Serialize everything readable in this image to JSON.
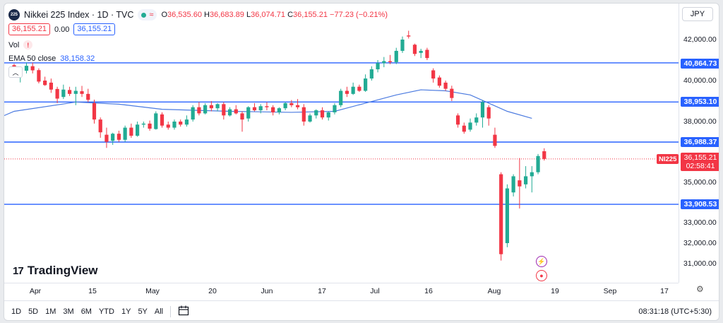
{
  "legend": {
    "logo_text": "225",
    "symbol_title": "Nikkei 225 Index · 1D · TVC",
    "ohlc": [
      {
        "label": "O",
        "value": "36,535.60"
      },
      {
        "label": "H",
        "value": "36,683.89"
      },
      {
        "label": "L",
        "value": "36,074.71"
      },
      {
        "label": "C",
        "value": "36,155.21"
      }
    ],
    "change": "−77.23 (−0.21%)",
    "bid": "36,155.21",
    "spread": "0.00",
    "ask": "36,155.21",
    "vol_label": "Vol",
    "vol_warning": "!",
    "ema_label": "EMA 50 close",
    "ema_value": "38,158.32",
    "collapse_glyph": "︿"
  },
  "currency": {
    "label": "JPY",
    "caret": "▾"
  },
  "price_labels": [
    "42,000.00",
    "40,000.00",
    "38,000.00",
    "35,000.00",
    "33,000.00",
    "32,000.00",
    "31,000.00"
  ],
  "levels": [
    "40,864.73",
    "38,953.10",
    "36,988.37",
    "33,908.53"
  ],
  "last_price": {
    "price": "36,155.21",
    "countdown": "02:58:41",
    "symbol_tag": "NI225"
  },
  "time_labels": [
    "Apr",
    "15",
    "May",
    "20",
    "Jun",
    "17",
    "Jul",
    "16",
    "Aug",
    "19",
    "Sep",
    "17"
  ],
  "brand": {
    "mark": "17",
    "name": "TradingView"
  },
  "events": {
    "flash_glyph": "⚡",
    "record_glyph": "●"
  },
  "ranges": [
    "1D",
    "5D",
    "1M",
    "3M",
    "6M",
    "YTD",
    "1Y",
    "5Y",
    "All"
  ],
  "calendar_icon": "📅",
  "clock": "08:31:18 (UTC+5:30)",
  "settings_icon": "⚙",
  "colors": {
    "up": "#22ab94",
    "down": "#f23645",
    "ema": "#2962ff",
    "level": "#2962ff"
  },
  "chart_data": {
    "type": "candlestick",
    "title": "Nikkei 225 Index · 1D · TVC",
    "xlabel": "",
    "ylabel": "",
    "ylim": [
      31000,
      42000
    ],
    "grid": false,
    "x_tick_labels": [
      "Apr",
      "15",
      "May",
      "20",
      "Jun",
      "17",
      "Jul",
      "16",
      "Aug",
      "19",
      "Sep",
      "17"
    ],
    "candles": [
      {
        "o": 40750,
        "h": 40820,
        "l": 40270,
        "c": 40360
      },
      {
        "o": 40300,
        "h": 40530,
        "l": 39910,
        "c": 40420
      },
      {
        "o": 40480,
        "h": 40890,
        "l": 40350,
        "c": 40720
      },
      {
        "o": 40700,
        "h": 40880,
        "l": 40350,
        "c": 40500
      },
      {
        "o": 40510,
        "h": 40600,
        "l": 39860,
        "c": 39950
      },
      {
        "o": 40000,
        "h": 40190,
        "l": 39740,
        "c": 39780
      },
      {
        "o": 39900,
        "h": 40100,
        "l": 39400,
        "c": 39560
      },
      {
        "o": 39590,
        "h": 39700,
        "l": 38900,
        "c": 39120
      },
      {
        "o": 39200,
        "h": 39800,
        "l": 39100,
        "c": 39560
      },
      {
        "o": 39540,
        "h": 39700,
        "l": 39250,
        "c": 39350
      },
      {
        "o": 39350,
        "h": 39700,
        "l": 38800,
        "c": 39500
      },
      {
        "o": 39480,
        "h": 39740,
        "l": 39200,
        "c": 39350
      },
      {
        "o": 39350,
        "h": 39600,
        "l": 38950,
        "c": 39060
      },
      {
        "o": 38900,
        "h": 39070,
        "l": 37900,
        "c": 38100
      },
      {
        "o": 38100,
        "h": 38200,
        "l": 37200,
        "c": 37470
      },
      {
        "o": 37350,
        "h": 37700,
        "l": 36700,
        "c": 37000
      },
      {
        "o": 37050,
        "h": 37450,
        "l": 36850,
        "c": 37400
      },
      {
        "o": 37400,
        "h": 37550,
        "l": 37000,
        "c": 37100
      },
      {
        "o": 37100,
        "h": 37800,
        "l": 37000,
        "c": 37700
      },
      {
        "o": 37700,
        "h": 37900,
        "l": 37200,
        "c": 37300
      },
      {
        "o": 37300,
        "h": 38000,
        "l": 37250,
        "c": 37850
      },
      {
        "o": 37850,
        "h": 38000,
        "l": 37700,
        "c": 37900
      },
      {
        "o": 37900,
        "h": 38050,
        "l": 37550,
        "c": 37650
      },
      {
        "o": 37630,
        "h": 38500,
        "l": 37600,
        "c": 38400
      },
      {
        "o": 38350,
        "h": 38450,
        "l": 37700,
        "c": 37800
      },
      {
        "o": 37850,
        "h": 38000,
        "l": 37600,
        "c": 37700
      },
      {
        "o": 37700,
        "h": 38100,
        "l": 37600,
        "c": 38000
      },
      {
        "o": 38000,
        "h": 38100,
        "l": 37750,
        "c": 37850
      },
      {
        "o": 37850,
        "h": 38300,
        "l": 37750,
        "c": 38100
      },
      {
        "o": 38100,
        "h": 38800,
        "l": 38000,
        "c": 38700
      },
      {
        "o": 38700,
        "h": 38950,
        "l": 38300,
        "c": 38400
      },
      {
        "o": 38400,
        "h": 38900,
        "l": 38350,
        "c": 38800
      },
      {
        "o": 38800,
        "h": 39000,
        "l": 38500,
        "c": 38650
      },
      {
        "o": 38650,
        "h": 38900,
        "l": 38500,
        "c": 38850
      },
      {
        "o": 38850,
        "h": 38950,
        "l": 38100,
        "c": 38300
      },
      {
        "o": 38300,
        "h": 38700,
        "l": 38250,
        "c": 38600
      },
      {
        "o": 38600,
        "h": 38800,
        "l": 38350,
        "c": 38400
      },
      {
        "o": 38400,
        "h": 38500,
        "l": 37500,
        "c": 38100
      },
      {
        "o": 38150,
        "h": 38750,
        "l": 38000,
        "c": 38700
      },
      {
        "o": 38700,
        "h": 38900,
        "l": 38500,
        "c": 38550
      },
      {
        "o": 38550,
        "h": 38850,
        "l": 38400,
        "c": 38750
      },
      {
        "o": 38750,
        "h": 38950,
        "l": 38550,
        "c": 38700
      },
      {
        "o": 38700,
        "h": 38800,
        "l": 38300,
        "c": 38450
      },
      {
        "o": 38450,
        "h": 38700,
        "l": 38350,
        "c": 38650
      },
      {
        "o": 38650,
        "h": 38950,
        "l": 38550,
        "c": 38900
      },
      {
        "o": 38900,
        "h": 39050,
        "l": 38700,
        "c": 38800
      },
      {
        "o": 38800,
        "h": 39100,
        "l": 38600,
        "c": 38700
      },
      {
        "o": 38700,
        "h": 38850,
        "l": 37800,
        "c": 38000
      },
      {
        "o": 38000,
        "h": 38400,
        "l": 37950,
        "c": 38300
      },
      {
        "o": 38300,
        "h": 38600,
        "l": 38150,
        "c": 38550
      },
      {
        "o": 38550,
        "h": 38700,
        "l": 38100,
        "c": 38200
      },
      {
        "o": 38200,
        "h": 38500,
        "l": 38050,
        "c": 38450
      },
      {
        "o": 38450,
        "h": 38900,
        "l": 38350,
        "c": 38800
      },
      {
        "o": 38800,
        "h": 39600,
        "l": 38700,
        "c": 39500
      },
      {
        "o": 39500,
        "h": 39700,
        "l": 39200,
        "c": 39350
      },
      {
        "o": 39350,
        "h": 39900,
        "l": 39300,
        "c": 39700
      },
      {
        "o": 39700,
        "h": 39800,
        "l": 39450,
        "c": 39500
      },
      {
        "o": 39500,
        "h": 40300,
        "l": 39450,
        "c": 40100
      },
      {
        "o": 40100,
        "h": 40700,
        "l": 40000,
        "c": 40550
      },
      {
        "o": 40550,
        "h": 41000,
        "l": 40400,
        "c": 40850
      },
      {
        "o": 40850,
        "h": 41150,
        "l": 40650,
        "c": 40950
      },
      {
        "o": 40950,
        "h": 41250,
        "l": 40800,
        "c": 40900
      },
      {
        "o": 40900,
        "h": 41600,
        "l": 40800,
        "c": 41450
      },
      {
        "o": 41450,
        "h": 42150,
        "l": 41350,
        "c": 42000
      },
      {
        "o": 42200,
        "h": 42430,
        "l": 42050,
        "c": 42150
      },
      {
        "o": 41750,
        "h": 41800,
        "l": 41200,
        "c": 41300
      },
      {
        "o": 41350,
        "h": 41550,
        "l": 41100,
        "c": 41450
      },
      {
        "o": 41500,
        "h": 41600,
        "l": 41000,
        "c": 41100
      },
      {
        "o": 40500,
        "h": 40600,
        "l": 39900,
        "c": 40100
      },
      {
        "o": 40150,
        "h": 40250,
        "l": 39650,
        "c": 39750
      },
      {
        "o": 39900,
        "h": 40000,
        "l": 39500,
        "c": 39600
      },
      {
        "o": 39600,
        "h": 39750,
        "l": 39000,
        "c": 39150
      },
      {
        "o": 38300,
        "h": 38400,
        "l": 37700,
        "c": 37850
      },
      {
        "o": 37800,
        "h": 37950,
        "l": 37400,
        "c": 37500
      },
      {
        "o": 37600,
        "h": 38150,
        "l": 37500,
        "c": 37950
      },
      {
        "o": 37950,
        "h": 38400,
        "l": 37800,
        "c": 38200
      },
      {
        "o": 38200,
        "h": 39050,
        "l": 37700,
        "c": 38950
      },
      {
        "o": 38700,
        "h": 38800,
        "l": 37800,
        "c": 38150
      },
      {
        "o": 37350,
        "h": 37700,
        "l": 36700,
        "c": 36800
      },
      {
        "o": 35400,
        "h": 35500,
        "l": 31150,
        "c": 31460
      },
      {
        "o": 32000,
        "h": 34900,
        "l": 31800,
        "c": 34700
      },
      {
        "o": 34500,
        "h": 35400,
        "l": 34300,
        "c": 35300
      },
      {
        "o": 35100,
        "h": 36200,
        "l": 33700,
        "c": 34800
      },
      {
        "o": 34900,
        "h": 35800,
        "l": 34700,
        "c": 35300
      },
      {
        "o": 35300,
        "h": 35800,
        "l": 34500,
        "c": 35500
      },
      {
        "o": 35500,
        "h": 36400,
        "l": 35400,
        "c": 36300
      },
      {
        "o": 36535.6,
        "h": 36683.89,
        "l": 36074.71,
        "c": 36155.21
      }
    ],
    "ema50": [
      {
        "i": 0,
        "v": 38500
      },
      {
        "i": 10,
        "v": 38950
      },
      {
        "i": 17,
        "v": 38850
      },
      {
        "i": 24,
        "v": 38600
      },
      {
        "i": 35,
        "v": 38500
      },
      {
        "i": 45,
        "v": 38450
      },
      {
        "i": 52,
        "v": 38500
      },
      {
        "i": 57,
        "v": 38900
      },
      {
        "i": 62,
        "v": 39300
      },
      {
        "i": 66,
        "v": 39550
      },
      {
        "i": 70,
        "v": 39500
      },
      {
        "i": 74,
        "v": 39300
      },
      {
        "i": 77,
        "v": 38900
      },
      {
        "i": 80,
        "v": 38500
      },
      {
        "i": 84,
        "v": 38158.32
      }
    ],
    "horizontal_levels": [
      40864.73,
      38953.1,
      36988.37,
      33908.53
    ],
    "last_close": 36155.21
  }
}
